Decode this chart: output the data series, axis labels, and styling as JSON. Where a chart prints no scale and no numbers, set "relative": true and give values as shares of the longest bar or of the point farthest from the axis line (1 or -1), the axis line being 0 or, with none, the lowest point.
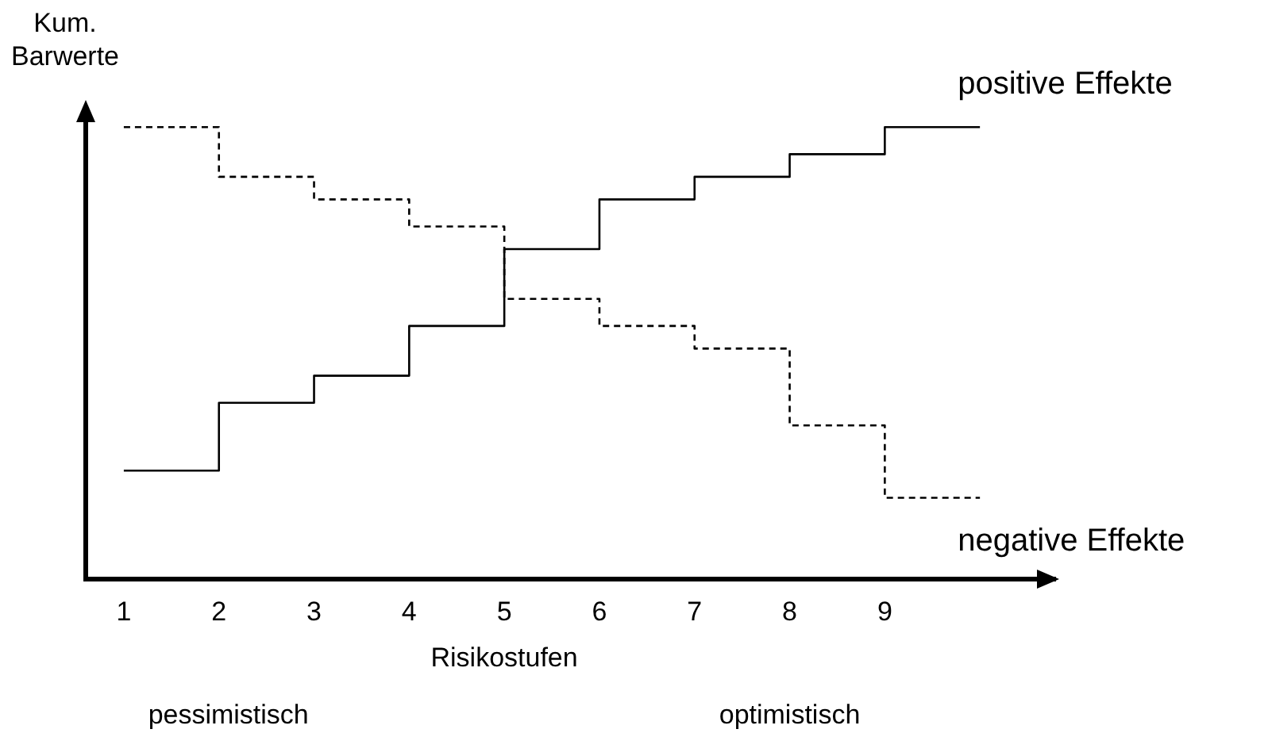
{
  "chart_data": {
    "type": "step",
    "relative": true,
    "ylabel": "Kum.\nBarwerte",
    "xlabel": "Risikostufen",
    "x": [
      1,
      2,
      3,
      4,
      5,
      6,
      7,
      8,
      9,
      10
    ],
    "xlim": [
      0.6,
      10.8
    ],
    "xticks": [
      1,
      2,
      3,
      4,
      5,
      6,
      7,
      8,
      9
    ],
    "series": [
      {
        "name": "positive Effekte",
        "color": "#000000",
        "line_style": "solid",
        "values": [
          0.24,
          0.39,
          0.45,
          0.56,
          0.73,
          0.84,
          0.89,
          0.94,
          1,
          1
        ]
      },
      {
        "name": "negative Effekte",
        "color": "#000000",
        "line_style": "dashed",
        "values": [
          1,
          0.89,
          0.84,
          0.78,
          0.62,
          0.56,
          0.51,
          0.34,
          0.18,
          0.18
        ]
      }
    ],
    "annotations": [
      "pessimistisch",
      "optimistisch"
    ],
    "grid": false,
    "legend": false,
    "marker": "none"
  }
}
